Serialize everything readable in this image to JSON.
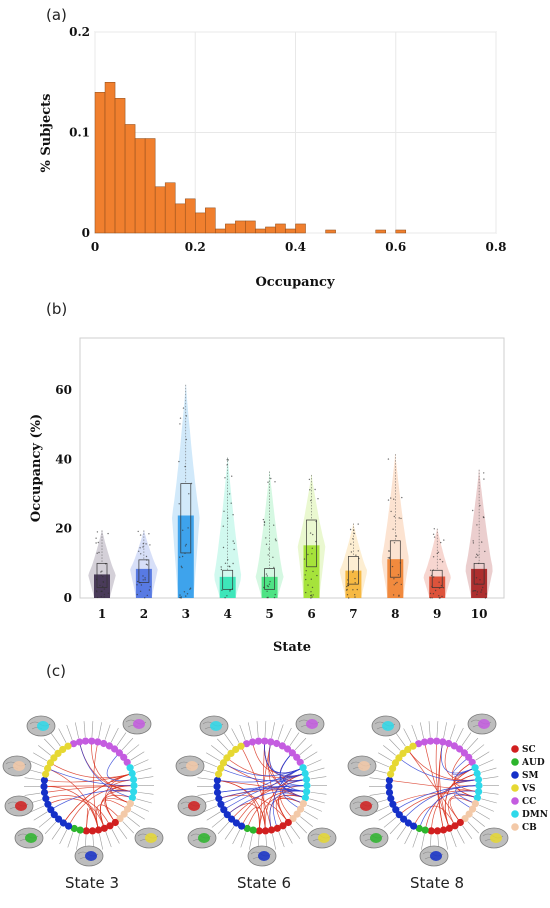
{
  "panels": {
    "a": {
      "label": "(a)"
    },
    "b": {
      "label": "(b)"
    },
    "c": {
      "label": "(c)"
    }
  },
  "chart_data": [
    {
      "type": "bar",
      "subtype": "histogram",
      "xlabel": "Occupancy",
      "ylabel": "% Subjects",
      "xlim": [
        0,
        0.8
      ],
      "ylim": [
        0,
        0.2
      ],
      "xticks": [
        "0",
        "0.2",
        "0.4",
        "0.6",
        "0.8"
      ],
      "yticks": [
        "0",
        "0.1",
        "0.2"
      ],
      "bin_width": 0.02,
      "bin_starts": [
        0.0,
        0.02,
        0.04,
        0.06,
        0.08,
        0.1,
        0.12,
        0.14,
        0.16,
        0.18,
        0.2,
        0.22,
        0.24,
        0.26,
        0.28,
        0.3,
        0.32,
        0.34,
        0.36,
        0.38,
        0.4,
        0.42,
        0.44,
        0.46,
        0.48,
        0.5,
        0.52,
        0.54,
        0.56,
        0.58,
        0.6
      ],
      "values": [
        0.14,
        0.15,
        0.134,
        0.108,
        0.094,
        0.094,
        0.046,
        0.05,
        0.029,
        0.034,
        0.02,
        0.025,
        0.004,
        0.009,
        0.012,
        0.012,
        0.004,
        0.006,
        0.009,
        0.004,
        0.009,
        0.0,
        0.0,
        0.003,
        0.0,
        0.0,
        0.0,
        0.0,
        0.003,
        0.0,
        0.003
      ],
      "bar_color": "#F07F2E",
      "grid": true
    },
    {
      "type": "bar",
      "subtype": "violin-box-bar",
      "xlabel": "State",
      "ylabel": "Occupancy (%)",
      "ylim": [
        0,
        75
      ],
      "yticks": [
        "0",
        "20",
        "40",
        "60"
      ],
      "categories": [
        "1",
        "2",
        "3",
        "4",
        "5",
        "6",
        "7",
        "8",
        "9",
        "10"
      ],
      "values": [
        6.8,
        8.4,
        23.8,
        6.1,
        6.1,
        15.2,
        7.9,
        11.2,
        6.2,
        8.4
      ],
      "q1": [
        3.0,
        4.5,
        13.0,
        2.5,
        2.5,
        9.0,
        4.0,
        6.0,
        3.0,
        4.0
      ],
      "q3": [
        10.0,
        11.0,
        33.0,
        8.0,
        8.5,
        22.5,
        12.0,
        16.5,
        8.0,
        10.0
      ],
      "max": [
        19.5,
        19.5,
        61.5,
        40.5,
        36.5,
        35.5,
        21.5,
        41.5,
        20.0,
        37.0
      ],
      "colors": [
        "#3B2A4D",
        "#4A6FE0",
        "#2E9BEA",
        "#2EE3B4",
        "#3FE07A",
        "#9FE02A",
        "#F5B233",
        "#F07F2E",
        "#D9452A",
        "#A61E1E"
      ]
    }
  ],
  "legend": {
    "items": [
      {
        "label": "SC",
        "color": "#D11F1F"
      },
      {
        "label": "AUD",
        "color": "#2DB52D"
      },
      {
        "label": "SM",
        "color": "#1530C8"
      },
      {
        "label": "VS",
        "color": "#E6D832"
      },
      {
        "label": "CC",
        "color": "#C45CE0"
      },
      {
        "label": "DMN",
        "color": "#2ED9EA"
      },
      {
        "label": "CB",
        "color": "#F3C9A8"
      }
    ]
  },
  "connectograms": [
    {
      "caption": "State 3"
    },
    {
      "caption": "State 6"
    },
    {
      "caption": "State 8"
    }
  ]
}
